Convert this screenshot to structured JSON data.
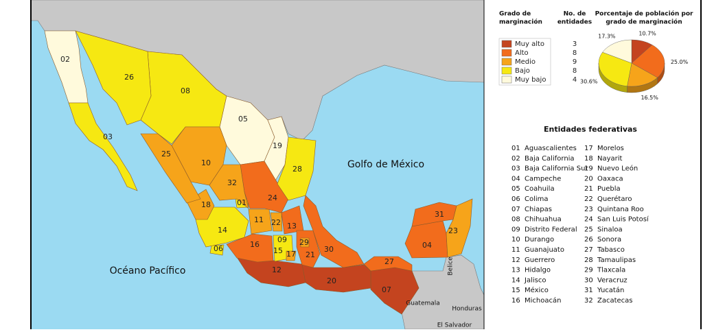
{
  "map": {
    "sea_labels": [
      "Golfo de México",
      "Océano Pacífico"
    ],
    "country_labels": [
      "Belice",
      "Guatemala",
      "Honduras",
      "El Salvador"
    ],
    "state_labels": [
      "01",
      "02",
      "03",
      "04",
      "05",
      "06",
      "07",
      "08",
      "09",
      "10",
      "11",
      "12",
      "13",
      "14",
      "15",
      "16",
      "17",
      "18",
      "19",
      "20",
      "21",
      "22",
      "23",
      "24",
      "25",
      "26",
      "27",
      "28",
      "29",
      "30",
      "31",
      "32"
    ]
  },
  "legend": {
    "headers": {
      "level": [
        "Grado de",
        "marginación"
      ],
      "count": [
        "No. de",
        "entidades"
      ],
      "share": [
        "Porcentaje de población por",
        "grado de marginación"
      ]
    },
    "rows": [
      {
        "name": "Muy alto",
        "color": "#c4441f",
        "count": 3,
        "percent": 10.7,
        "percent_label": "10.7%"
      },
      {
        "name": "Alto",
        "color": "#f26c1c",
        "count": 8,
        "percent": 25.0,
        "percent_label": "25.0%"
      },
      {
        "name": "Medio",
        "color": "#f6a41a",
        "count": 9,
        "percent": 16.5,
        "percent_label": "16.5%"
      },
      {
        "name": "Bajo",
        "color": "#f6e812",
        "count": 8,
        "percent": 30.6,
        "percent_label": "30.6%"
      },
      {
        "name": "Muy bajo",
        "color": "#fffadc",
        "count": 4,
        "percent": 17.3,
        "percent_label": "17.3%"
      }
    ]
  },
  "entities": {
    "title": "Entidades federativas",
    "items": [
      {
        "code": "01",
        "name": "Aguascalientes"
      },
      {
        "code": "02",
        "name": "Baja California"
      },
      {
        "code": "03",
        "name": "Baja California Sur"
      },
      {
        "code": "04",
        "name": "Campeche"
      },
      {
        "code": "05",
        "name": "Coahuila"
      },
      {
        "code": "06",
        "name": "Colima"
      },
      {
        "code": "07",
        "name": "Chiapas"
      },
      {
        "code": "08",
        "name": "Chihuahua"
      },
      {
        "code": "09",
        "name": "Distrito Federal"
      },
      {
        "code": "10",
        "name": "Durango"
      },
      {
        "code": "11",
        "name": "Guanajuato"
      },
      {
        "code": "12",
        "name": "Guerrero"
      },
      {
        "code": "13",
        "name": "Hidalgo"
      },
      {
        "code": "14",
        "name": "Jalisco"
      },
      {
        "code": "15",
        "name": "México"
      },
      {
        "code": "16",
        "name": "Michoacán"
      },
      {
        "code": "17",
        "name": "Morelos"
      },
      {
        "code": "18",
        "name": "Nayarit"
      },
      {
        "code": "19",
        "name": "Nuevo León"
      },
      {
        "code": "20",
        "name": "Oaxaca"
      },
      {
        "code": "21",
        "name": "Puebla"
      },
      {
        "code": "22",
        "name": "Querétaro"
      },
      {
        "code": "23",
        "name": "Quintana Roo"
      },
      {
        "code": "24",
        "name": "San Luis Potosí"
      },
      {
        "code": "25",
        "name": "Sinaloa"
      },
      {
        "code": "26",
        "name": "Sonora"
      },
      {
        "code": "27",
        "name": "Tabasco"
      },
      {
        "code": "28",
        "name": "Tamaulipas"
      },
      {
        "code": "29",
        "name": "Tlaxcala"
      },
      {
        "code": "30",
        "name": "Veracruz"
      },
      {
        "code": "31",
        "name": "Yucatán"
      },
      {
        "code": "32",
        "name": "Zacatecas"
      }
    ]
  }
}
